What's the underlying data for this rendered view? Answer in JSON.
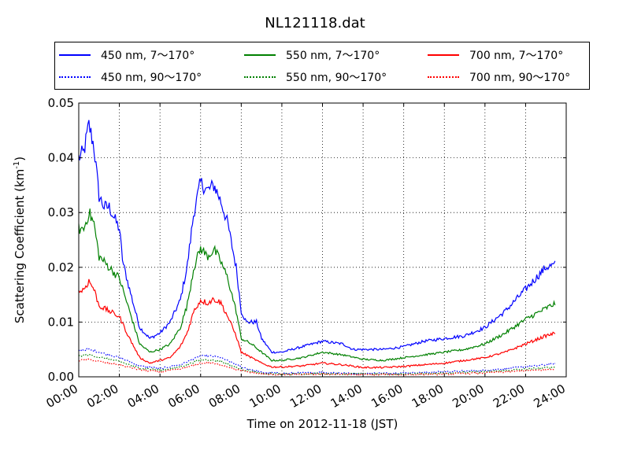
{
  "chart_data": {
    "type": "line",
    "title": "NL121118.dat",
    "xlabel": "Time on 2012-11-18 (JST)",
    "ylabel": "Scattering Coefficient (km",
    "ylabel_exponent": "-1",
    "ylabel_suffix": ")",
    "xlim": [
      "00:00",
      "24:00"
    ],
    "ylim": [
      0,
      0.05
    ],
    "x_ticks": [
      "00:00",
      "02:00",
      "04:00",
      "06:00",
      "08:00",
      "10:00",
      "12:00",
      "14:00",
      "16:00",
      "18:00",
      "20:00",
      "22:00",
      "24:00"
    ],
    "y_ticks": [
      "0.00",
      "0.01",
      "0.02",
      "0.03",
      "0.04",
      "0.05"
    ],
    "grid": true,
    "legend_position": "top (above plot)",
    "series": [
      {
        "name": "450 nm, 7～170°",
        "color": "#0000ff",
        "style": "solid",
        "points": [
          [
            "00:00",
            0.04
          ],
          [
            "00:15",
            0.041
          ],
          [
            "00:30",
            0.046
          ],
          [
            "00:45",
            0.042
          ],
          [
            "01:00",
            0.033
          ],
          [
            "01:15",
            0.031
          ],
          [
            "01:30",
            0.031
          ],
          [
            "01:45",
            0.029
          ],
          [
            "02:00",
            0.027
          ],
          [
            "02:10",
            0.021
          ],
          [
            "02:30",
            0.016
          ],
          [
            "03:00",
            0.009
          ],
          [
            "03:30",
            0.007
          ],
          [
            "04:00",
            0.008
          ],
          [
            "04:30",
            0.01
          ],
          [
            "05:00",
            0.014
          ],
          [
            "05:20",
            0.02
          ],
          [
            "05:40",
            0.03
          ],
          [
            "06:00",
            0.0355
          ],
          [
            "06:20",
            0.034
          ],
          [
            "06:40",
            0.035
          ],
          [
            "07:00",
            0.032
          ],
          [
            "07:20",
            0.028
          ],
          [
            "07:45",
            0.02
          ],
          [
            "08:00",
            0.012
          ],
          [
            "08:15",
            0.01
          ],
          [
            "08:45",
            0.01
          ],
          [
            "09:00",
            0.007
          ],
          [
            "09:30",
            0.0045
          ],
          [
            "10:00",
            0.0045
          ],
          [
            "11:00",
            0.0055
          ],
          [
            "12:00",
            0.0065
          ],
          [
            "13:00",
            0.006
          ],
          [
            "13:30",
            0.005
          ],
          [
            "14:00",
            0.005
          ],
          [
            "15:00",
            0.005
          ],
          [
            "16:00",
            0.0055
          ],
          [
            "17:00",
            0.0065
          ],
          [
            "18:00",
            0.007
          ],
          [
            "19:00",
            0.0075
          ],
          [
            "20:00",
            0.009
          ],
          [
            "21:00",
            0.012
          ],
          [
            "22:00",
            0.016
          ],
          [
            "23:00",
            0.02
          ],
          [
            "23:30",
            0.0205
          ]
        ]
      },
      {
        "name": "450 nm, 90～170°",
        "color": "#0000ff",
        "style": "dotted",
        "points": [
          [
            "00:00",
            0.0048
          ],
          [
            "00:30",
            0.005
          ],
          [
            "01:00",
            0.0045
          ],
          [
            "02:00",
            0.0035
          ],
          [
            "03:00",
            0.002
          ],
          [
            "04:00",
            0.0015
          ],
          [
            "05:00",
            0.0022
          ],
          [
            "06:00",
            0.0038
          ],
          [
            "06:30",
            0.0038
          ],
          [
            "07:00",
            0.0035
          ],
          [
            "08:00",
            0.0018
          ],
          [
            "09:00",
            0.0008
          ],
          [
            "10:00",
            0.0006
          ],
          [
            "12:00",
            0.0008
          ],
          [
            "14:00",
            0.0006
          ],
          [
            "16:00",
            0.0007
          ],
          [
            "18:00",
            0.0009
          ],
          [
            "20:00",
            0.0012
          ],
          [
            "22:00",
            0.0018
          ],
          [
            "23:30",
            0.0024
          ]
        ]
      },
      {
        "name": "550 nm, 7～170°",
        "color": "#008000",
        "style": "solid",
        "points": [
          [
            "00:00",
            0.027
          ],
          [
            "00:15",
            0.027
          ],
          [
            "00:30",
            0.03
          ],
          [
            "00:45",
            0.028
          ],
          [
            "01:00",
            0.022
          ],
          [
            "01:30",
            0.02
          ],
          [
            "02:00",
            0.018
          ],
          [
            "02:30",
            0.012
          ],
          [
            "03:00",
            0.006
          ],
          [
            "03:30",
            0.0045
          ],
          [
            "04:00",
            0.005
          ],
          [
            "04:30",
            0.006
          ],
          [
            "05:00",
            0.009
          ],
          [
            "05:20",
            0.013
          ],
          [
            "05:40",
            0.02
          ],
          [
            "06:00",
            0.0235
          ],
          [
            "06:20",
            0.022
          ],
          [
            "06:40",
            0.0232
          ],
          [
            "07:00",
            0.021
          ],
          [
            "07:20",
            0.018
          ],
          [
            "07:45",
            0.012
          ],
          [
            "08:00",
            0.007
          ],
          [
            "08:30",
            0.006
          ],
          [
            "09:00",
            0.0045
          ],
          [
            "09:30",
            0.003
          ],
          [
            "10:00",
            0.003
          ],
          [
            "11:00",
            0.0035
          ],
          [
            "12:00",
            0.0045
          ],
          [
            "13:00",
            0.004
          ],
          [
            "14:00",
            0.0032
          ],
          [
            "15:00",
            0.003
          ],
          [
            "16:00",
            0.0035
          ],
          [
            "17:00",
            0.004
          ],
          [
            "18:00",
            0.0045
          ],
          [
            "19:00",
            0.005
          ],
          [
            "20:00",
            0.006
          ],
          [
            "21:00",
            0.008
          ],
          [
            "22:00",
            0.0105
          ],
          [
            "23:00",
            0.0125
          ],
          [
            "23:30",
            0.0135
          ]
        ]
      },
      {
        "name": "550 nm, 90～170°",
        "color": "#008000",
        "style": "dotted",
        "points": [
          [
            "00:00",
            0.0038
          ],
          [
            "00:30",
            0.004
          ],
          [
            "01:00",
            0.0036
          ],
          [
            "02:00",
            0.0028
          ],
          [
            "03:00",
            0.0016
          ],
          [
            "04:00",
            0.0012
          ],
          [
            "05:00",
            0.0018
          ],
          [
            "06:00",
            0.0031
          ],
          [
            "06:30",
            0.0031
          ],
          [
            "07:00",
            0.0028
          ],
          [
            "08:00",
            0.0014
          ],
          [
            "09:00",
            0.0006
          ],
          [
            "10:00",
            0.0005
          ],
          [
            "12:00",
            0.0006
          ],
          [
            "14:00",
            0.0005
          ],
          [
            "16:00",
            0.0005
          ],
          [
            "18:00",
            0.0007
          ],
          [
            "20:00",
            0.0009
          ],
          [
            "22:00",
            0.0014
          ],
          [
            "23:30",
            0.0018
          ]
        ]
      },
      {
        "name": "700 nm, 7～170°",
        "color": "#ff0000",
        "style": "solid",
        "points": [
          [
            "00:00",
            0.0155
          ],
          [
            "00:15",
            0.016
          ],
          [
            "00:30",
            0.0175
          ],
          [
            "00:45",
            0.016
          ],
          [
            "01:00",
            0.013
          ],
          [
            "01:30",
            0.012
          ],
          [
            "02:00",
            0.011
          ],
          [
            "02:30",
            0.007
          ],
          [
            "03:00",
            0.0035
          ],
          [
            "03:30",
            0.0025
          ],
          [
            "04:00",
            0.003
          ],
          [
            "04:30",
            0.0035
          ],
          [
            "05:00",
            0.0055
          ],
          [
            "05:20",
            0.008
          ],
          [
            "05:40",
            0.012
          ],
          [
            "06:00",
            0.014
          ],
          [
            "06:20",
            0.0135
          ],
          [
            "06:40",
            0.0142
          ],
          [
            "07:00",
            0.0135
          ],
          [
            "07:20",
            0.011
          ],
          [
            "07:45",
            0.0075
          ],
          [
            "08:00",
            0.0045
          ],
          [
            "08:30",
            0.0035
          ],
          [
            "09:00",
            0.0025
          ],
          [
            "09:30",
            0.0018
          ],
          [
            "10:00",
            0.0018
          ],
          [
            "11:00",
            0.002
          ],
          [
            "12:00",
            0.0025
          ],
          [
            "13:00",
            0.0022
          ],
          [
            "14:00",
            0.0017
          ],
          [
            "15:00",
            0.0017
          ],
          [
            "16:00",
            0.0019
          ],
          [
            "17:00",
            0.0022
          ],
          [
            "18:00",
            0.0025
          ],
          [
            "19:00",
            0.003
          ],
          [
            "20:00",
            0.0035
          ],
          [
            "21:00",
            0.0045
          ],
          [
            "22:00",
            0.006
          ],
          [
            "23:00",
            0.0075
          ],
          [
            "23:30",
            0.008
          ]
        ]
      },
      {
        "name": "700 nm, 90～170°",
        "color": "#ff0000",
        "style": "dotted",
        "points": [
          [
            "00:00",
            0.003
          ],
          [
            "00:30",
            0.0032
          ],
          [
            "01:00",
            0.0028
          ],
          [
            "02:00",
            0.0022
          ],
          [
            "03:00",
            0.0013
          ],
          [
            "04:00",
            0.0009
          ],
          [
            "05:00",
            0.0014
          ],
          [
            "06:00",
            0.0025
          ],
          [
            "06:30",
            0.0025
          ],
          [
            "07:00",
            0.0022
          ],
          [
            "08:00",
            0.0011
          ],
          [
            "09:00",
            0.0005
          ],
          [
            "10:00",
            0.0004
          ],
          [
            "12:00",
            0.0005
          ],
          [
            "14:00",
            0.0004
          ],
          [
            "16:00",
            0.0004
          ],
          [
            "18:00",
            0.0005
          ],
          [
            "20:00",
            0.0007
          ],
          [
            "22:00",
            0.0011
          ],
          [
            "23:30",
            0.0014
          ]
        ]
      }
    ]
  }
}
